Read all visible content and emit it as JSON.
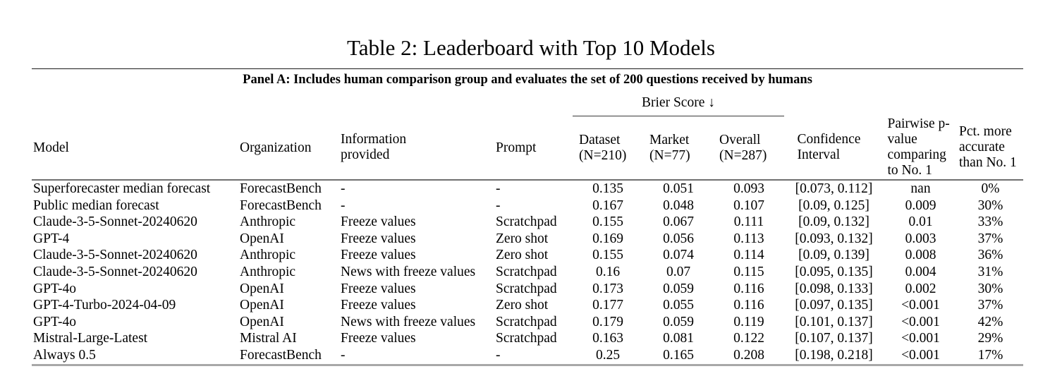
{
  "title": "Table 2: Leaderboard with Top 10 Models",
  "panel_header": "Panel A: Includes human comparison group and evaluates the set of 200 questions received by humans",
  "brier_spanner": "Brier Score ↓",
  "columns": [
    {
      "key": "model",
      "label": "Model"
    },
    {
      "key": "organization",
      "label": "Organization"
    },
    {
      "key": "information_provided",
      "label": "Information provided"
    },
    {
      "key": "prompt",
      "label": "Prompt"
    },
    {
      "key": "brier_dataset",
      "label": "Dataset (N=210)"
    },
    {
      "key": "brier_market",
      "label": "Market (N=77)"
    },
    {
      "key": "brier_overall",
      "label": "Overall (N=287)"
    },
    {
      "key": "confidence_interval",
      "label": "Confidence Interval"
    },
    {
      "key": "pairwise_p_value",
      "label": "Pairwise p-value comparing to No. 1"
    },
    {
      "key": "pct_more_accurate",
      "label": "Pct. more accurate than No. 1"
    }
  ],
  "rows": [
    {
      "cells": [
        "Superforecaster median forecast",
        "ForecastBench",
        "-",
        "-",
        "0.135",
        "0.051",
        "0.093",
        "[0.073, 0.112]",
        "nan",
        "0%"
      ]
    },
    {
      "cells": [
        "Public median forecast",
        "ForecastBench",
        "-",
        "-",
        "0.167",
        "0.048",
        "0.107",
        "[0.09, 0.125]",
        "0.009",
        "30%"
      ]
    },
    {
      "cells": [
        "Claude-3-5-Sonnet-20240620",
        "Anthropic",
        "Freeze values",
        "Scratchpad",
        "0.155",
        "0.067",
        "0.111",
        "[0.09, 0.132]",
        "0.01",
        "33%"
      ]
    },
    {
      "cells": [
        "GPT-4",
        "OpenAI",
        "Freeze values",
        "Zero shot",
        "0.169",
        "0.056",
        "0.113",
        "[0.093, 0.132]",
        "0.003",
        "37%"
      ]
    },
    {
      "cells": [
        "Claude-3-5-Sonnet-20240620",
        "Anthropic",
        "Freeze values",
        "Zero shot",
        "0.155",
        "0.074",
        "0.114",
        "[0.09, 0.139]",
        "0.008",
        "36%"
      ]
    },
    {
      "cells": [
        "Claude-3-5-Sonnet-20240620",
        "Anthropic",
        "News with freeze values",
        "Scratchpad",
        "0.16",
        "0.07",
        "0.115",
        "[0.095, 0.135]",
        "0.004",
        "31%"
      ]
    },
    {
      "cells": [
        "GPT-4o",
        "OpenAI",
        "Freeze values",
        "Scratchpad",
        "0.173",
        "0.059",
        "0.116",
        "[0.098, 0.133]",
        "0.002",
        "30%"
      ]
    },
    {
      "cells": [
        "GPT-4-Turbo-2024-04-09",
        "OpenAI",
        "Freeze values",
        "Zero shot",
        "0.177",
        "0.055",
        "0.116",
        "[0.097, 0.135]",
        "<0.001",
        "37%"
      ]
    },
    {
      "cells": [
        "GPT-4o",
        "OpenAI",
        "News with freeze values",
        "Scratchpad",
        "0.179",
        "0.059",
        "0.119",
        "[0.101, 0.137]",
        "<0.001",
        "42%"
      ]
    },
    {
      "cells": [
        "Mistral-Large-Latest",
        "Mistral AI",
        "Freeze values",
        "Scratchpad",
        "0.163",
        "0.081",
        "0.122",
        "[0.107, 0.137]",
        "<0.001",
        "29%"
      ]
    },
    {
      "cells": [
        "Always 0.5",
        "ForecastBench",
        "-",
        "-",
        "0.25",
        "0.165",
        "0.208",
        "[0.198, 0.218]",
        "<0.001",
        "17%"
      ]
    }
  ]
}
